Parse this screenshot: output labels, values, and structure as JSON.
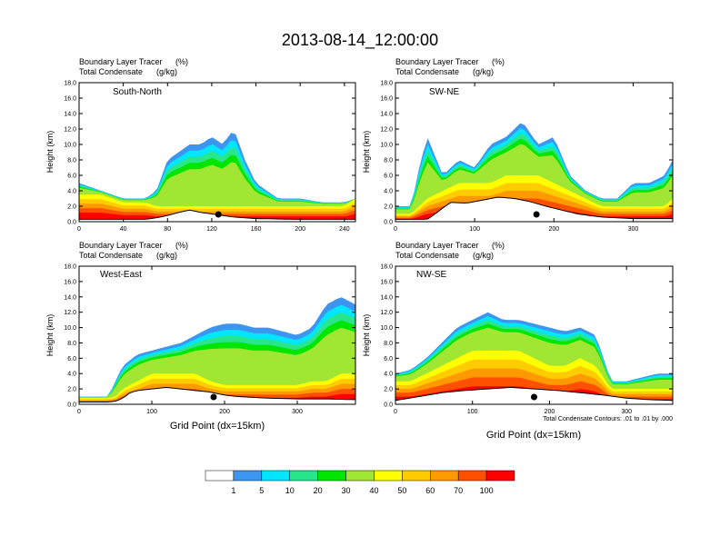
{
  "figure_title": "2013-08-14_12:00:00",
  "chart_data": [
    {
      "type": "heatmap",
      "panel_label": "South-North",
      "field_label": "Boundary Layer Tracer",
      "field_units": "(%)",
      "contour_label": "Total Condensate",
      "contour_units": "(g/kg)",
      "ylabel": "Height (km)",
      "xlabel": "",
      "xlim": [
        0,
        250
      ],
      "ylim": [
        0,
        18
      ],
      "xticks": [
        "0",
        "40",
        "80",
        "120",
        "160",
        "200",
        "240"
      ],
      "yticks": [
        "0.0",
        "2.0",
        "4.0",
        "6.0",
        "8.0",
        "10.0",
        "12.0",
        "14.0",
        "16.0",
        "18.0"
      ],
      "marker_x": 126,
      "profile": {
        "x": [
          0,
          20,
          40,
          60,
          70,
          80,
          90,
          100,
          110,
          120,
          130,
          140,
          150,
          160,
          170,
          180,
          200,
          220,
          240,
          250
        ],
        "base": [
          3.5,
          3.5,
          2.5,
          2.5,
          2,
          2,
          2,
          2,
          2,
          2,
          2,
          2,
          2,
          2,
          2,
          2,
          2,
          2,
          2,
          3
        ],
        "top": [
          5,
          4,
          3,
          3,
          4,
          8,
          9,
          10,
          10,
          11,
          10,
          12,
          8,
          5,
          4,
          3,
          3,
          2.5,
          2.5,
          3
        ]
      },
      "terrain": {
        "x": [
          0,
          40,
          60,
          70,
          80,
          90,
          100,
          110,
          120,
          130,
          140,
          150,
          160,
          200,
          250
        ],
        "h": [
          0.3,
          0.3,
          0.3,
          0.5,
          0.8,
          1.2,
          1.5,
          1.2,
          1.0,
          0.8,
          0.6,
          0.5,
          0.4,
          0.3,
          0.3
        ]
      }
    },
    {
      "type": "heatmap",
      "panel_label": "SW-NE",
      "field_label": "Boundary Layer Tracer",
      "field_units": "(%)",
      "contour_label": "Total Condensate",
      "contour_units": "(g/kg)",
      "ylabel": "Height (km)",
      "xlabel": "",
      "xlim": [
        0,
        350
      ],
      "ylim": [
        0,
        18
      ],
      "xticks": [
        "0",
        "100",
        "200",
        "300"
      ],
      "yticks": [
        "0.0",
        "2.0",
        "4.0",
        "6.0",
        "8.0",
        "10.0",
        "12.0",
        "14.0",
        "16.0",
        "18.0"
      ],
      "marker_x": 178,
      "profile": {
        "x": [
          0,
          20,
          30,
          40,
          60,
          80,
          100,
          120,
          140,
          160,
          180,
          200,
          220,
          240,
          260,
          280,
          300,
          320,
          340,
          350
        ],
        "base": [
          1,
          1,
          2,
          3,
          4,
          5,
          5,
          5,
          6,
          6,
          6,
          5,
          4,
          3,
          2,
          2,
          2,
          2,
          2,
          3
        ],
        "top": [
          2,
          2,
          7,
          11,
          6,
          8,
          7,
          10,
          11,
          13,
          10,
          11,
          6,
          4,
          3,
          3,
          5,
          5,
          6,
          8
        ]
      },
      "terrain": {
        "x": [
          0,
          40,
          50,
          60,
          70,
          90,
          110,
          130,
          150,
          170,
          190,
          210,
          230,
          260,
          300,
          350
        ],
        "h": [
          0.3,
          0.3,
          1.0,
          1.8,
          2.5,
          2.4,
          2.8,
          3.2,
          3.0,
          2.6,
          2.0,
          1.5,
          1.0,
          0.6,
          0.4,
          0.4
        ]
      }
    },
    {
      "type": "heatmap",
      "panel_label": "West-East",
      "field_label": "Boundary Layer Tracer",
      "field_units": "(%)",
      "contour_label": "Total Condensate",
      "contour_units": "(g/kg)",
      "ylabel": "Height (km)",
      "xlabel": "Grid Point (dx=15km)",
      "xlim": [
        0,
        380
      ],
      "ylim": [
        0,
        18
      ],
      "xticks": [
        "0",
        "100",
        "200",
        "300"
      ],
      "yticks": [
        "0.0",
        "2.0",
        "4.0",
        "6.0",
        "8.0",
        "10.0",
        "12.0",
        "14.0",
        "16.0",
        "18.0"
      ],
      "marker_x": 185,
      "profile": {
        "x": [
          0,
          20,
          40,
          50,
          60,
          80,
          100,
          120,
          140,
          160,
          180,
          200,
          220,
          240,
          260,
          280,
          300,
          320,
          340,
          360,
          380
        ],
        "base": [
          0.8,
          0.8,
          0.8,
          1,
          2,
          3,
          4,
          4,
          4,
          4,
          3,
          2.5,
          2.5,
          2.5,
          2.5,
          2.5,
          2.5,
          3,
          3,
          4,
          4
        ],
        "top": [
          1,
          1,
          1,
          3,
          5,
          6.5,
          7,
          7.5,
          8,
          9,
          10,
          10.5,
          10.5,
          10,
          10,
          9.5,
          9,
          10,
          13,
          14,
          13
        ]
      },
      "terrain": {
        "x": [
          0,
          40,
          50,
          60,
          70,
          80,
          100,
          120,
          140,
          160,
          180,
          200,
          220,
          260,
          300,
          340,
          380
        ],
        "h": [
          0.3,
          0.3,
          0.4,
          0.8,
          1.5,
          1.8,
          2.0,
          2.2,
          2.0,
          1.8,
          1.6,
          1.2,
          1.0,
          0.8,
          0.7,
          0.7,
          0.6
        ]
      }
    },
    {
      "type": "heatmap",
      "panel_label": "NW-SE",
      "field_label": "Boundary Layer Tracer",
      "field_units": "(%)",
      "contour_label": "Total Condensate",
      "contour_units": "(g/kg)",
      "ylabel": "Height (km)",
      "xlabel": "Grid Point (dx=15km)",
      "xlim": [
        0,
        360
      ],
      "ylim": [
        0,
        18
      ],
      "xticks": [
        "0",
        "100",
        "200",
        "300"
      ],
      "yticks": [
        "0.0",
        "2.0",
        "4.0",
        "6.0",
        "8.0",
        "10.0",
        "12.0",
        "14.0",
        "16.0",
        "18.0"
      ],
      "marker_x": 180,
      "annotation": "Total Condensate Contours: .01 to .01 by .000",
      "profile": {
        "x": [
          0,
          20,
          40,
          60,
          80,
          100,
          120,
          140,
          160,
          180,
          200,
          220,
          240,
          260,
          280,
          300,
          320,
          340,
          360
        ],
        "base": [
          3,
          3,
          4,
          5,
          6,
          7,
          7,
          7,
          7,
          6,
          5,
          5,
          6,
          5,
          2,
          2,
          2,
          2,
          2
        ],
        "top": [
          4,
          4.5,
          6,
          8,
          10,
          11,
          12,
          11,
          11,
          10.5,
          10,
          9.5,
          10,
          9,
          3,
          3,
          3.5,
          4,
          4
        ]
      },
      "terrain": {
        "x": [
          0,
          30,
          60,
          90,
          120,
          150,
          180,
          210,
          240,
          270,
          300,
          330,
          360
        ],
        "h": [
          0.5,
          1.0,
          1.5,
          1.8,
          2.0,
          2.2,
          2.0,
          1.8,
          1.5,
          1.2,
          0.8,
          0.6,
          0.5
        ]
      }
    }
  ],
  "colorbar": {
    "labels": [
      "1",
      "5",
      "10",
      "20",
      "30",
      "40",
      "50",
      "60",
      "70",
      "100"
    ],
    "colors": [
      "#ffffff",
      "#3c96f0",
      "#00e6ff",
      "#28e68c",
      "#00e600",
      "#a0e632",
      "#ffff00",
      "#ffcc00",
      "#ff9900",
      "#ff5000",
      "#ff0000"
    ]
  }
}
